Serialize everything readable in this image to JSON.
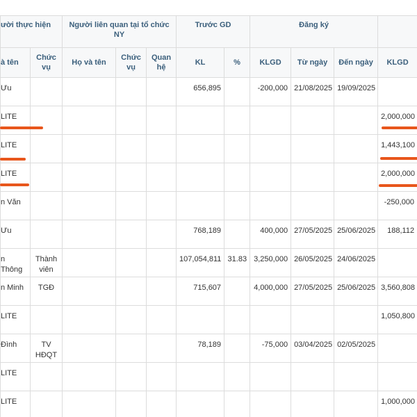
{
  "header": {
    "groups": {
      "performer": "ười thực hiện",
      "related": "Người liên quan tại tổ chức NY",
      "before": "Trước GD",
      "registered": "Đăng ký"
    },
    "columns": {
      "name": "à tên",
      "role": "Chức vụ",
      "rel_name": "Họ và tên",
      "rel_role": "Chức vụ",
      "relation": "Quan hệ",
      "kl": "KL",
      "pct": "%",
      "reg_klgd": "KLGD",
      "from": "Từ ngày",
      "to": "Đến ngày",
      "klgd": "KLGD"
    }
  },
  "table": {
    "rows": [
      {
        "name": "Ưu",
        "kl": "656,895",
        "reg_klgd": "-200,000",
        "from": "21/08/2025",
        "to": "19/09/2025"
      },
      {
        "name": "LITE",
        "klgd": "2,000,000"
      },
      {
        "name": "LITE",
        "klgd": "1,443,100"
      },
      {
        "name": "LITE",
        "klgd": "2,000,000"
      },
      {
        "name": "n Văn",
        "klgd": "-250,000"
      },
      {
        "name": "Ưu",
        "kl": "768,189",
        "reg_klgd": "400,000",
        "from": "27/05/2025",
        "to": "25/06/2025",
        "klgd": "188,112"
      },
      {
        "name": "n Thông",
        "role": "Thành viên",
        "kl": "107,054,811",
        "pct": "31.83",
        "reg_klgd": "3,250,000",
        "from": "26/05/2025",
        "to": "24/06/2025"
      },
      {
        "name": "n Minh",
        "role": "TGĐ",
        "kl": "715,607",
        "reg_klgd": "4,000,000",
        "from": "27/05/2025",
        "to": "25/06/2025",
        "klgd": "3,560,808"
      },
      {
        "name": "LITE",
        "klgd": "1,050,800"
      },
      {
        "name": "Đình",
        "role": "TV HĐQT",
        "kl": "78,189",
        "reg_klgd": "-75,000",
        "from": "03/04/2025",
        "to": "02/05/2025"
      },
      {
        "name": "LITE"
      },
      {
        "name": "LITE",
        "klgd": "1,000,000"
      }
    ]
  }
}
